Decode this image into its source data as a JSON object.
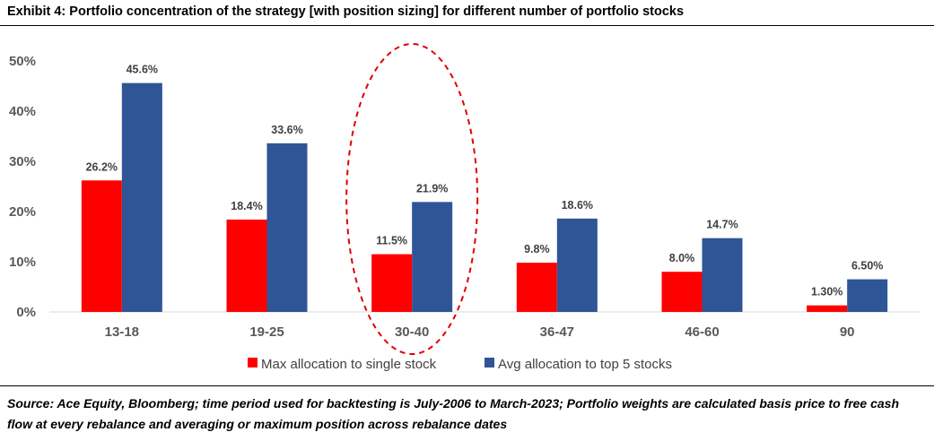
{
  "title": "Exhibit 4:  Portfolio concentration of the strategy [with position sizing] for different number of portfolio stocks",
  "source": "Source: Ace Equity, Bloomberg; time period used for backtesting is July-2006 to March-2023; Portfolio weights are calculated basis price to free cash flow at every rebalance and averaging or maximum position across rebalance dates",
  "chart_data": {
    "type": "bar",
    "categories": [
      "13-18",
      "19-25",
      "30-40",
      "36-47",
      "46-60",
      "90"
    ],
    "series": [
      {
        "name": "Max allocation to single stock",
        "color": "#ff0000",
        "values": [
          26.2,
          18.4,
          11.5,
          9.8,
          8.0,
          1.3
        ],
        "labels": [
          "26.2%",
          "18.4%",
          "11.5%",
          "9.8%",
          "8.0%",
          "1.30%"
        ]
      },
      {
        "name": "Avg allocation to top 5 stocks",
        "color": "#2f5597",
        "values": [
          45.6,
          33.6,
          21.9,
          18.6,
          14.7,
          6.5
        ],
        "labels": [
          "45.6%",
          "33.6%",
          "21.9%",
          "18.6%",
          "14.7%",
          "6.50%"
        ]
      }
    ],
    "y_ticks": [
      "0%",
      "10%",
      "20%",
      "30%",
      "40%",
      "50%"
    ],
    "ylim": [
      0,
      50
    ],
    "grid": false,
    "legend_position": "bottom",
    "highlight": {
      "category": "30-40",
      "shape": "dashed-ellipse",
      "color": "#e00000"
    }
  }
}
